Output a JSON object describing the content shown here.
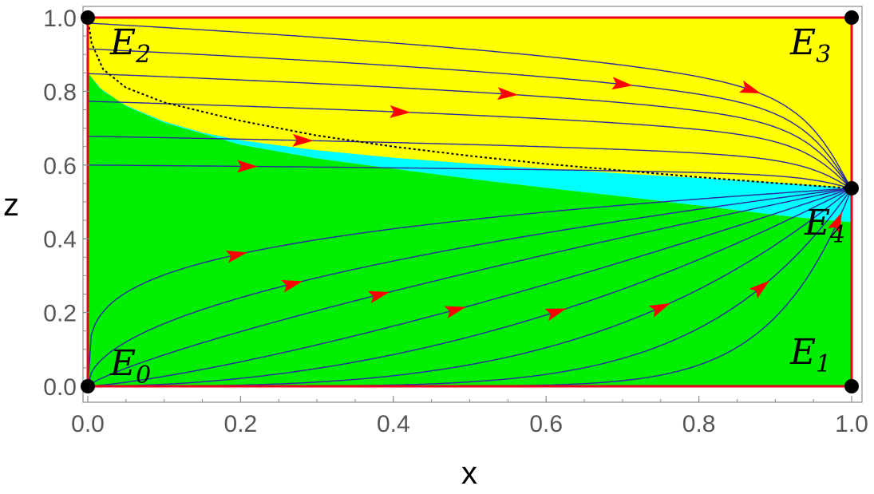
{
  "chart_data": {
    "type": "stream",
    "xlabel": "x",
    "ylabel": "z",
    "xlim": [
      0,
      1
    ],
    "ylim": [
      0,
      1
    ],
    "x_ticks": [
      "0.0",
      "0.2",
      "0.4",
      "0.6",
      "0.8",
      "1.0"
    ],
    "y_ticks": [
      "0.0",
      "0.2",
      "0.4",
      "0.6",
      "0.8",
      "1.0"
    ],
    "region_colors": {
      "green": "#00ee00",
      "cyan": "#00ffff",
      "yellow": "#ffff00"
    },
    "boundary_color": "#e8001c",
    "trajectory_color": "#2a2aa0",
    "arrow_color": "#ff0000",
    "cyan_region": {
      "upper": [
        [
          0.0,
          0.85
        ],
        [
          0.02,
          0.8
        ],
        [
          0.05,
          0.762
        ],
        [
          0.1,
          0.718
        ],
        [
          0.15,
          0.688
        ],
        [
          0.2,
          0.667
        ],
        [
          0.3,
          0.64
        ],
        [
          0.4,
          0.62
        ],
        [
          0.5,
          0.604
        ],
        [
          0.6,
          0.59
        ],
        [
          0.7,
          0.577
        ],
        [
          0.8,
          0.565
        ],
        [
          0.9,
          0.553
        ],
        [
          0.965,
          0.543
        ],
        [
          1.0,
          0.537
        ]
      ],
      "lower": [
        [
          0.0,
          0.85
        ],
        [
          0.015,
          0.81
        ],
        [
          0.05,
          0.76
        ],
        [
          0.1,
          0.715
        ],
        [
          0.2,
          0.655
        ],
        [
          0.3,
          0.618
        ],
        [
          0.4,
          0.59
        ],
        [
          0.5,
          0.563
        ],
        [
          0.6,
          0.538
        ],
        [
          0.7,
          0.515
        ],
        [
          0.8,
          0.49
        ],
        [
          0.9,
          0.465
        ],
        [
          0.96,
          0.452
        ],
        [
          1.0,
          0.445
        ]
      ]
    },
    "separatrix": [
      [
        0.0,
        1.0
      ],
      [
        0.005,
        0.93
      ],
      [
        0.02,
        0.86
      ],
      [
        0.05,
        0.81
      ],
      [
        0.1,
        0.77
      ],
      [
        0.2,
        0.72
      ],
      [
        0.3,
        0.68
      ],
      [
        0.4,
        0.65
      ],
      [
        0.5,
        0.625
      ],
      [
        0.6,
        0.603
      ],
      [
        0.7,
        0.585
      ],
      [
        0.8,
        0.567
      ],
      [
        0.9,
        0.551
      ],
      [
        1.0,
        0.537
      ]
    ],
    "trajectories_top": [
      {
        "z0": 0.985,
        "arrow_x": 0.87
      },
      {
        "z0": 0.915,
        "arrow_x": 0.7
      },
      {
        "z0": 0.848,
        "arrow_x": 0.55
      },
      {
        "z0": 0.773,
        "arrow_x": 0.41
      },
      {
        "z0": 0.678,
        "arrow_x": 0.28
      },
      {
        "z0": 0.6,
        "arrow_x": 0.21
      }
    ],
    "trajectories_bottom": [
      {
        "p": 0.25,
        "arrow_x": 0.195
      },
      {
        "p": 0.5,
        "arrow_x": 0.27
      },
      {
        "p": 0.8,
        "arrow_x": 0.38
      },
      {
        "p": 1.3,
        "arrow_x": 0.48
      },
      {
        "p": 2.0,
        "arrow_x": 0.615
      },
      {
        "p": 3.2,
        "arrow_x": 0.75
      },
      {
        "p": 5.5,
        "arrow_x": 0.88
      },
      {
        "p": 10.0,
        "arrow_x": 0.98
      }
    ],
    "equilibria": [
      {
        "label": "E",
        "sub": "0",
        "x": 0.0,
        "z": 0.0
      },
      {
        "label": "E",
        "sub": "1",
        "x": 1.0,
        "z": 0.0
      },
      {
        "label": "E",
        "sub": "2",
        "x": 0.0,
        "z": 1.0
      },
      {
        "label": "E",
        "sub": "3",
        "x": 1.0,
        "z": 1.0
      },
      {
        "label": "E",
        "sub": "4",
        "x": 1.0,
        "z": 0.537
      }
    ]
  }
}
